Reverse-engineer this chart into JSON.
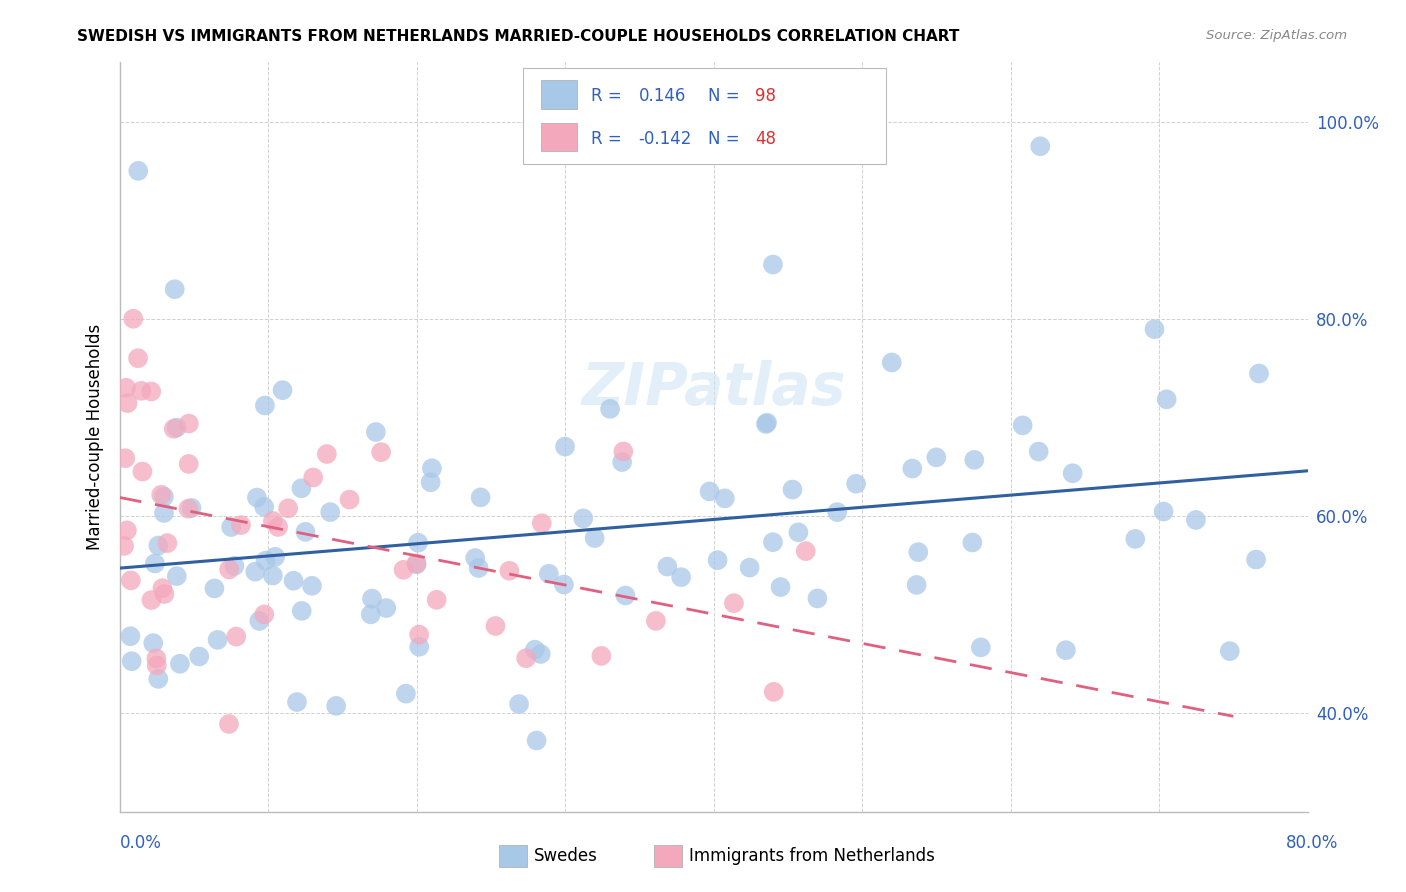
{
  "title": "SWEDISH VS IMMIGRANTS FROM NETHERLANDS MARRIED-COUPLE HOUSEHOLDS CORRELATION CHART",
  "source": "Source: ZipAtlas.com",
  "ylabel": "Married-couple Households",
  "ytick_vals": [
    0.4,
    0.6,
    0.8,
    1.0
  ],
  "ytick_labels": [
    "40.0%",
    "60.0%",
    "80.0%",
    "100.0%"
  ],
  "legend_label_blue": "Swedes",
  "legend_label_pink": "Immigrants from Netherlands",
  "blue_dot_color": "#a8c8e8",
  "pink_dot_color": "#f4a8bc",
  "blue_line_color": "#3060a0",
  "pink_line_color": "#e06080",
  "legend_text_color": "#3060c0",
  "legend_r_pink_color": "#e06080",
  "n_value_color": "#e03030",
  "watermark_color": "#d0e4f4",
  "r_blue": 0.146,
  "r_pink": -0.142,
  "n_blue": 98,
  "n_pink": 48,
  "xmin": 0.0,
  "xmax": 0.8,
  "ymin": 0.3,
  "ymax": 1.06
}
